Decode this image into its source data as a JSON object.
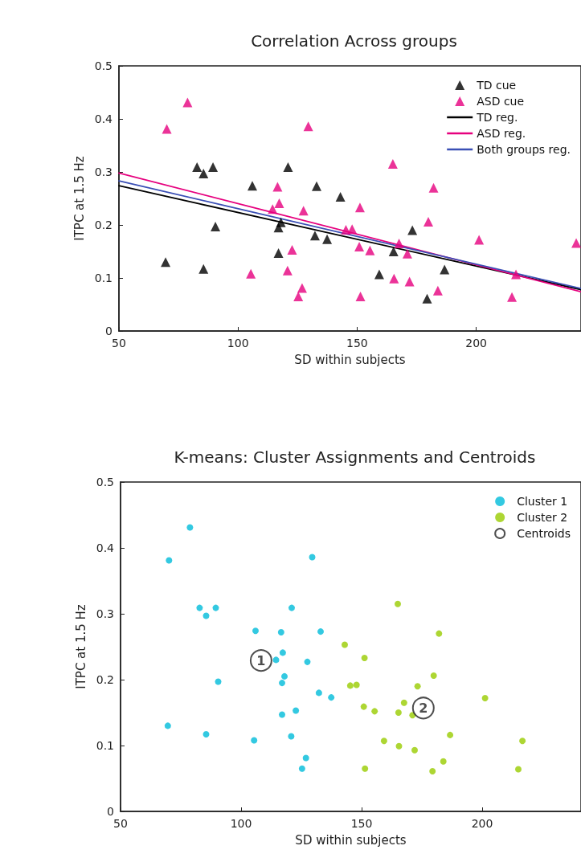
{
  "chart_data": [
    {
      "type": "scatter",
      "title": "Correlation Across groups",
      "xlabel": "SD within subjects",
      "ylabel": "ITPC at 1.5 Hz",
      "xlim": [
        50,
        244
      ],
      "xticks": [
        50,
        100,
        150,
        200
      ],
      "ylim": [
        0,
        0.5
      ],
      "yticks": [
        0,
        0.1,
        0.2,
        0.3,
        0.4,
        0.5
      ],
      "grid": false,
      "legend": "top right",
      "series": [
        {
          "name": "TD cue",
          "type": "scatter",
          "marker": "triangle",
          "color": "#000000",
          "x": [
            69.6,
            85.5,
            82.8,
            85.5,
            89.5,
            90.5,
            106,
            121,
            117,
            118,
            117,
            133,
            132.3,
            137.4,
            143,
            173.2,
            165.3,
            159.3,
            186.7,
            179.4
          ],
          "values": [
            0.13,
            0.117,
            0.309,
            0.297,
            0.309,
            0.197,
            0.274,
            0.309,
            0.195,
            0.205,
            0.147,
            0.273,
            0.18,
            0.173,
            0.253,
            0.19,
            0.15,
            0.107,
            0.116,
            0.061
          ]
        },
        {
          "name": "ASD cue",
          "type": "scatter",
          "marker": "triangle",
          "color": "#e6007e",
          "x": [
            78.8,
            70.1,
            129.5,
            116.6,
            117.3,
            114.5,
            127.5,
            122.7,
            120.8,
            105.4,
            126.9,
            125.3,
            145.3,
            147.9,
            165,
            182.1,
            151.2,
            179.9,
            150.9,
            155.4,
            167.6,
            171.1,
            201.2,
            216.7,
            165.5,
            172,
            183.9,
            151.4,
            215,
            242
          ],
          "values": [
            0.431,
            0.381,
            0.386,
            0.272,
            0.241,
            0.23,
            0.227,
            0.153,
            0.114,
            0.108,
            0.081,
            0.065,
            0.191,
            0.192,
            0.315,
            0.27,
            0.233,
            0.206,
            0.159,
            0.152,
            0.165,
            0.146,
            0.172,
            0.107,
            0.099,
            0.093,
            0.076,
            0.065,
            0.064,
            0.166
          ]
        },
        {
          "name": "TD reg.",
          "type": "line",
          "marker": "none",
          "line_style": "solid",
          "color": "#000000",
          "x": [
            50,
            244
          ],
          "values": [
            0.274,
            0.078
          ]
        },
        {
          "name": "ASD reg.",
          "type": "line",
          "marker": "none",
          "line_style": "solid",
          "color": "#e6007e",
          "x": [
            50,
            244
          ],
          "values": [
            0.298,
            0.074
          ]
        },
        {
          "name": "Both groups reg.",
          "type": "line",
          "marker": "none",
          "line_style": "solid",
          "color": "#3a4fb5",
          "x": [
            50,
            244
          ],
          "values": [
            0.283,
            0.08
          ]
        }
      ]
    },
    {
      "type": "scatter",
      "title": "K-means: Cluster Assignments and Centroids",
      "xlabel": "SD within subjects",
      "ylabel": "ITPC at 1.5 Hz",
      "xlim": [
        50,
        241
      ],
      "xticks": [
        50,
        100,
        150,
        200
      ],
      "ylim": [
        0,
        0.5
      ],
      "yticks": [
        0,
        0.1,
        0.2,
        0.3,
        0.4,
        0.5
      ],
      "grid": false,
      "legend": "top right",
      "series": [
        {
          "name": "Cluster 1",
          "type": "scatter",
          "marker": "circle",
          "color": "#00bcd9",
          "x": [
            69.6,
            85.5,
            82.8,
            85.5,
            89.5,
            90.5,
            106,
            121,
            117,
            118,
            117,
            133,
            132.3,
            137.4,
            78.8,
            70.1,
            129.5,
            116.6,
            117.3,
            114.5,
            127.5,
            122.7,
            120.8,
            105.4,
            126.9,
            125.3
          ],
          "values": [
            0.13,
            0.117,
            0.309,
            0.297,
            0.309,
            0.197,
            0.274,
            0.309,
            0.195,
            0.205,
            0.147,
            0.273,
            0.18,
            0.173,
            0.431,
            0.381,
            0.386,
            0.272,
            0.241,
            0.23,
            0.227,
            0.153,
            0.114,
            0.108,
            0.081,
            0.065
          ]
        },
        {
          "name": "Cluster 2",
          "type": "scatter",
          "marker": "circle",
          "color": "#99cc00",
          "x": [
            143,
            173.2,
            165.3,
            159.3,
            186.7,
            179.4,
            145.3,
            147.9,
            165,
            182.1,
            151.2,
            179.9,
            150.9,
            155.4,
            167.6,
            171.1,
            201.2,
            216.7,
            165.5,
            172,
            183.9,
            151.4,
            215
          ],
          "values": [
            0.253,
            0.19,
            0.15,
            0.107,
            0.116,
            0.061,
            0.191,
            0.192,
            0.315,
            0.27,
            0.233,
            0.206,
            0.159,
            0.152,
            0.165,
            0.146,
            0.172,
            0.107,
            0.099,
            0.093,
            0.076,
            0.065,
            0.064
          ]
        },
        {
          "name": "Centroids",
          "type": "scatter",
          "marker": "circle",
          "color": "#222222",
          "x": [
            108.3,
            175.6
          ],
          "values": [
            0.229,
            0.157
          ]
        }
      ],
      "annotations": [
        {
          "text": "1",
          "x": 108.3,
          "y": 0.229
        },
        {
          "text": "2",
          "x": 175.6,
          "y": 0.157
        }
      ]
    }
  ]
}
